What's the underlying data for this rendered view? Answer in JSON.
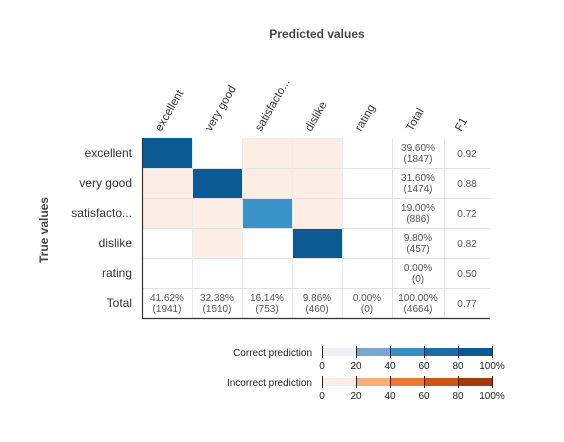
{
  "chart_data": {
    "type": "heatmap",
    "title": "Predicted values",
    "ylabel": "True values",
    "columns": [
      "excellent",
      "very good",
      "satisfacto...",
      "dislike",
      "rating",
      "Total",
      "F1"
    ],
    "rows": [
      "excellent",
      "very good",
      "satisfacto...",
      "dislike",
      "rating",
      "Total"
    ],
    "matrix_percent": [
      [
        100,
        0,
        5,
        5,
        0
      ],
      [
        5,
        100,
        5,
        5,
        0
      ],
      [
        5,
        5,
        75,
        5,
        0
      ],
      [
        0,
        5,
        0,
        100,
        0
      ],
      [
        0,
        0,
        0,
        0,
        0
      ]
    ],
    "row_totals": [
      {
        "pct": "39.60%",
        "count": "(1847)"
      },
      {
        "pct": "31.60%",
        "count": "(1474)"
      },
      {
        "pct": "19.00%",
        "count": "(886)"
      },
      {
        "pct": "9.80%",
        "count": "(457)"
      },
      {
        "pct": "0.00%",
        "count": "(0)"
      }
    ],
    "f1": [
      "0.92",
      "0.88",
      "0.72",
      "0.82",
      "0.50",
      "0.77"
    ],
    "column_totals": [
      {
        "pct": "41.62%",
        "count": "(1941)"
      },
      {
        "pct": "32.38%",
        "count": "(1510)"
      },
      {
        "pct": "16.14%",
        "count": "(753)"
      },
      {
        "pct": "9.86%",
        "count": "(460)"
      },
      {
        "pct": "0.00%",
        "count": "(0)"
      }
    ],
    "grand_total": {
      "pct": "100.00%",
      "count": "(4664)"
    },
    "legend": [
      {
        "title": "Correct prediction",
        "colors": [
          "#eef0f6",
          "#b9c8e1",
          "#79a6cf",
          "#3b8ec2",
          "#1b6aa5",
          "#0a5a93"
        ],
        "ticks": [
          "0",
          "20",
          "40",
          "60",
          "80",
          "100%"
        ]
      },
      {
        "title": "Incorrect prediction",
        "colors": [
          "#fdeee5",
          "#fbd1b6",
          "#f9ae79",
          "#ec7a36",
          "#cf5312",
          "#a23a0b"
        ],
        "ticks": [
          "0",
          "20",
          "40",
          "60",
          "80",
          "100%"
        ]
      }
    ]
  }
}
